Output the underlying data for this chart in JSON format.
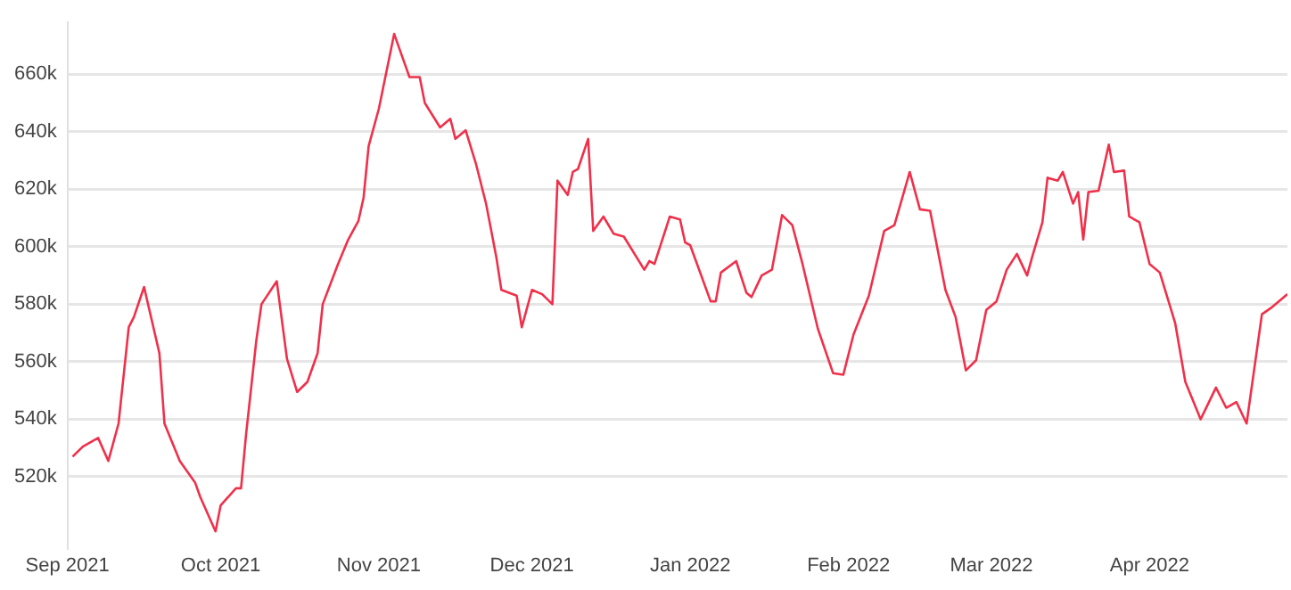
{
  "chart_data": {
    "type": "line",
    "x": [
      "2021-09-02",
      "2021-09-04",
      "2021-09-07",
      "2021-09-09",
      "2021-09-11",
      "2021-09-13",
      "2021-09-14",
      "2021-09-16",
      "2021-09-19",
      "2021-09-20",
      "2021-09-23",
      "2021-09-26",
      "2021-09-27",
      "2021-09-30",
      "2021-10-01",
      "2021-10-04",
      "2021-10-05",
      "2021-10-06",
      "2021-10-08",
      "2021-10-09",
      "2021-10-12",
      "2021-10-14",
      "2021-10-16",
      "2021-10-18",
      "2021-10-20",
      "2021-10-21",
      "2021-10-24",
      "2021-10-26",
      "2021-10-28",
      "2021-10-29",
      "2021-10-30",
      "2021-11-01",
      "2021-11-04",
      "2021-11-06",
      "2021-11-07",
      "2021-11-09",
      "2021-11-10",
      "2021-11-13",
      "2021-11-15",
      "2021-11-16",
      "2021-11-18",
      "2021-11-20",
      "2021-11-22",
      "2021-11-24",
      "2021-11-25",
      "2021-11-28",
      "2021-11-29",
      "2021-12-01",
      "2021-12-03",
      "2021-12-05",
      "2021-12-06",
      "2021-12-08",
      "2021-12-09",
      "2021-12-10",
      "2021-12-12",
      "2021-12-13",
      "2021-12-15",
      "2021-12-17",
      "2021-12-19",
      "2021-12-23",
      "2021-12-24",
      "2021-12-25",
      "2021-12-28",
      "2021-12-30",
      "2021-12-31",
      "2022-01-01",
      "2022-01-05",
      "2022-01-06",
      "2022-01-07",
      "2022-01-10",
      "2022-01-12",
      "2022-01-13",
      "2022-01-15",
      "2022-01-17",
      "2022-01-19",
      "2022-01-21",
      "2022-01-23",
      "2022-01-26",
      "2022-01-29",
      "2022-01-31",
      "2022-02-02",
      "2022-02-05",
      "2022-02-08",
      "2022-02-10",
      "2022-02-13",
      "2022-02-15",
      "2022-02-17",
      "2022-02-20",
      "2022-02-22",
      "2022-02-24",
      "2022-02-26",
      "2022-02-28",
      "2022-03-02",
      "2022-03-04",
      "2022-03-06",
      "2022-03-08",
      "2022-03-09",
      "2022-03-11",
      "2022-03-12",
      "2022-03-14",
      "2022-03-15",
      "2022-03-17",
      "2022-03-18",
      "2022-03-19",
      "2022-03-20",
      "2022-03-22",
      "2022-03-24",
      "2022-03-25",
      "2022-03-27",
      "2022-03-28",
      "2022-03-30",
      "2022-04-01",
      "2022-04-03",
      "2022-04-06",
      "2022-04-08",
      "2022-04-11",
      "2022-04-14",
      "2022-04-16",
      "2022-04-18",
      "2022-04-20",
      "2022-04-23",
      "2022-04-25",
      "2022-04-28"
    ],
    "series": [
      {
        "color": "#f0304a",
        "values": [
          527000,
          530500,
          533500,
          525500,
          538500,
          572000,
          575500,
          586000,
          563000,
          538500,
          525500,
          518000,
          513000,
          501000,
          510000,
          516000,
          516000,
          535000,
          567500,
          580000,
          588000,
          561000,
          549500,
          553000,
          563000,
          580000,
          594000,
          602500,
          609000,
          617000,
          635000,
          648000,
          674000,
          664000,
          659000,
          659000,
          650000,
          641500,
          644500,
          637500,
          640500,
          629000,
          615000,
          596500,
          585000,
          583000,
          572000,
          585000,
          583500,
          580000,
          623000,
          618000,
          626000,
          627000,
          637500,
          605500,
          610500,
          604500,
          603500,
          592000,
          595000,
          594000,
          610500,
          609500,
          601500,
          600500,
          581000,
          581000,
          591000,
          595000,
          584000,
          582500,
          590000,
          592000,
          611000,
          607500,
          594000,
          571500,
          556000,
          555500,
          569500,
          583000,
          605500,
          607500,
          626000,
          613000,
          612500,
          585000,
          575500,
          557000,
          560500,
          578000,
          581000,
          592000,
          597500,
          590000,
          596500,
          608500,
          624000,
          623000,
          626000,
          615000,
          619000,
          602500,
          619000,
          619500,
          635500,
          626000,
          626500,
          610500,
          608500,
          594000,
          591000,
          573500,
          553000,
          540000,
          551000,
          544000,
          546000,
          538500,
          576500,
          579000,
          583500
        ]
      }
    ],
    "xlim": [
      "2021-09-01",
      "2022-04-28"
    ],
    "xticks": [
      {
        "value": "2021-09-01",
        "label": "Sep 2021"
      },
      {
        "value": "2021-10-01",
        "label": "Oct 2021"
      },
      {
        "value": "2021-11-01",
        "label": "Nov 2021"
      },
      {
        "value": "2021-12-01",
        "label": "Dec 2021"
      },
      {
        "value": "2022-01-01",
        "label": "Jan 2022"
      },
      {
        "value": "2022-02-01",
        "label": "Feb 2022"
      },
      {
        "value": "2022-03-01",
        "label": "Mar 2022"
      },
      {
        "value": "2022-04-01",
        "label": "Apr 2022"
      }
    ],
    "ylim": [
      495000,
      678000
    ],
    "yticks": [
      {
        "value": 520000,
        "label": "520k"
      },
      {
        "value": 540000,
        "label": "540k"
      },
      {
        "value": 560000,
        "label": "560k"
      },
      {
        "value": 580000,
        "label": "580k"
      },
      {
        "value": 600000,
        "label": "600k"
      },
      {
        "value": 620000,
        "label": "620k"
      },
      {
        "value": 640000,
        "label": "640k"
      },
      {
        "value": 660000,
        "label": "660k"
      }
    ],
    "grid": "y",
    "marker": "none",
    "line_style": "solid"
  }
}
